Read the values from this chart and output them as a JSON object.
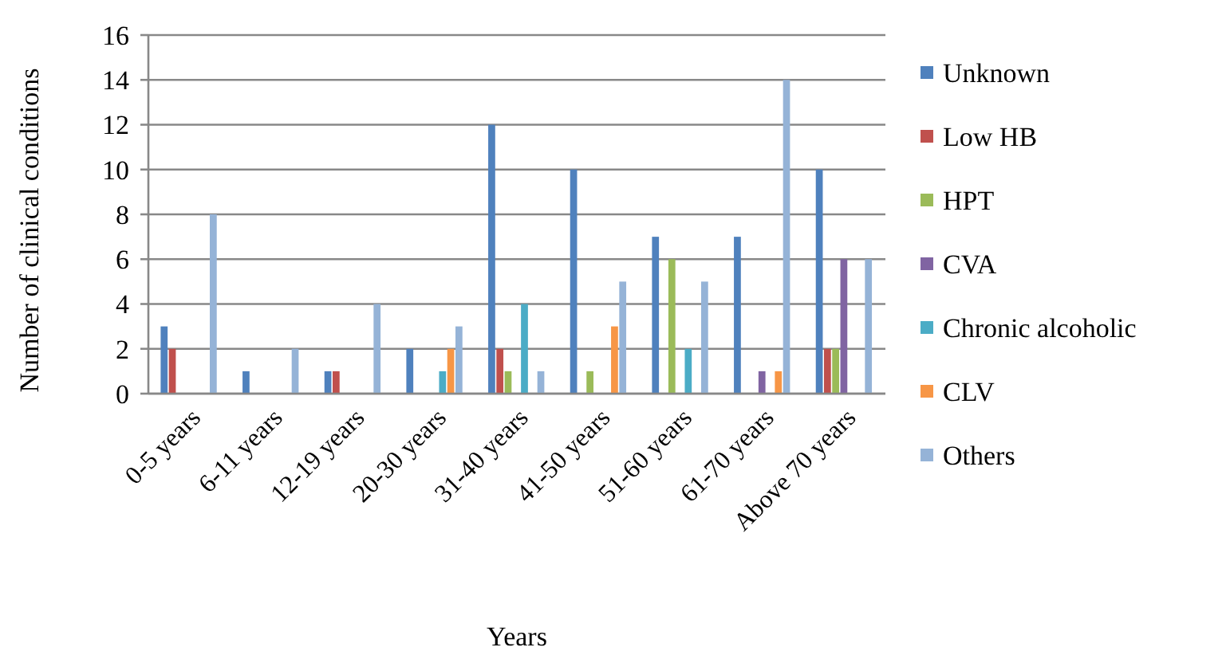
{
  "chart_data": {
    "type": "bar",
    "xlabel": "Years",
    "ylabel": "Number of clinical conditions",
    "categories": [
      "0-5 years",
      "6-11 years",
      "12-19 years",
      "20-30 years",
      "31-40 years",
      "41-50 years",
      "51-60 years",
      "61-70 years",
      "Above 70 years"
    ],
    "series": [
      {
        "name": "Unknown",
        "color": "#4f81bd",
        "values": [
          3,
          1,
          1,
          2,
          12,
          10,
          7,
          7,
          10
        ]
      },
      {
        "name": "Low HB",
        "color": "#c0504d",
        "values": [
          2,
          0,
          1,
          0,
          2,
          0,
          0,
          0,
          2
        ]
      },
      {
        "name": "HPT",
        "color": "#9bbb59",
        "values": [
          0,
          0,
          0,
          0,
          1,
          1,
          6,
          0,
          2
        ]
      },
      {
        "name": "CVA",
        "color": "#8064a2",
        "values": [
          0,
          0,
          0,
          0,
          0,
          0,
          0,
          1,
          6
        ]
      },
      {
        "name": "Chronic alcoholic",
        "color": "#4bacc6",
        "values": [
          0,
          0,
          0,
          1,
          4,
          0,
          2,
          0,
          0
        ]
      },
      {
        "name": "CLV",
        "color": "#f79646",
        "values": [
          0,
          0,
          0,
          2,
          0,
          3,
          0,
          1,
          0
        ]
      },
      {
        "name": "Others",
        "color": "#95b3d7",
        "values": [
          8,
          2,
          4,
          3,
          1,
          5,
          5,
          14,
          6
        ]
      }
    ],
    "ylim": [
      0,
      16
    ],
    "yticks": [
      0,
      2,
      4,
      6,
      8,
      10,
      12,
      14,
      16
    ],
    "grid": "y",
    "legend": "right"
  }
}
